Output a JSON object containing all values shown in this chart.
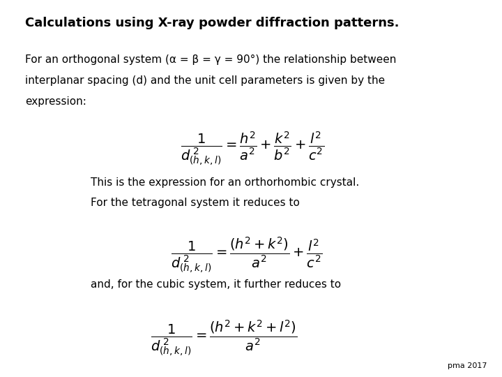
{
  "title": "Calculations using X-ray powder diffraction patterns.",
  "bg_color": "#ffffff",
  "text_color": "#000000",
  "title_fontsize": 13,
  "body_fontsize": 11,
  "math_fontsize": 14,
  "footer": "pma 2017",
  "para1_line1": "For an orthogonal system (α = β = γ = 90°) the relationship between",
  "para1_line2": "interplanar spacing (d) and the unit cell parameters is given by the",
  "para1_line3": "expression:",
  "para2_line1": "This is the expression for an orthorhombic crystal.",
  "para2_line2": "For the tetragonal system it reduces to",
  "para3": "and, for the cubic system, it further reduces to"
}
